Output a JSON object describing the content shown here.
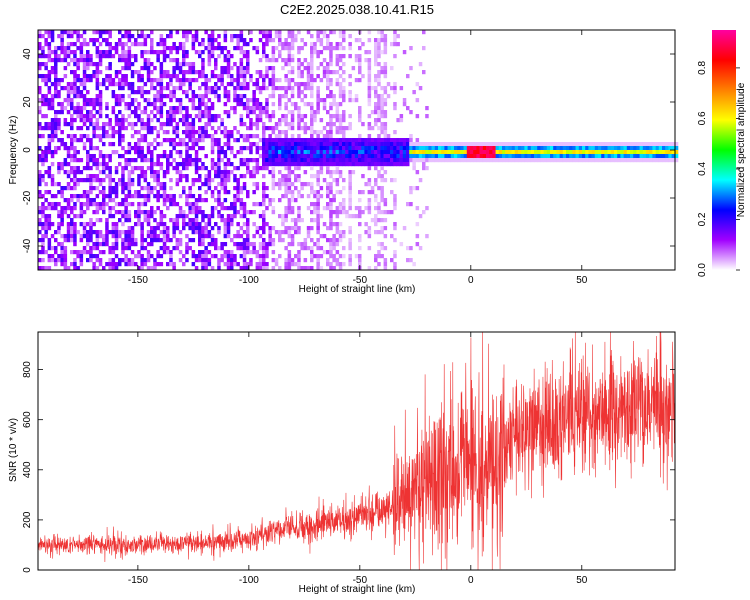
{
  "title": "C2E2.2025.038.10.41.R15",
  "chart_data": [
    {
      "type": "heatmap",
      "name": "spectrogram",
      "xlabel": "Height of straight line (km)",
      "ylabel": "Frequency (Hz)",
      "xlim": [
        -195,
        92
      ],
      "ylim": [
        -50,
        50
      ],
      "xticks": [
        -150,
        -100,
        -50,
        0,
        50
      ],
      "yticks": [
        -40,
        -20,
        0,
        20,
        40
      ],
      "colorbar": {
        "label": "Normalized spectral amplitude",
        "range": [
          0,
          0.95
        ],
        "ticks": [
          0.0,
          0.2,
          0.4,
          0.6,
          0.8
        ],
        "colormap": [
          "#ffffff",
          "#a100ff",
          "#0000ff",
          "#00ffff",
          "#00ff00",
          "#ffff00",
          "#ff8000",
          "#ff0000",
          "#ff00a0"
        ]
      },
      "features": [
        {
          "x_range": [
            -195,
            -90
          ],
          "description_level": 0.1
        },
        {
          "x_range": [
            -95,
            -30
          ],
          "center_freq": 0,
          "band_halfwidth_hz": 5,
          "peak_amplitude": 0.3
        },
        {
          "x_range": [
            -30,
            92
          ],
          "center_freq": 0,
          "band_halfwidth_hz": 2,
          "peak_amplitude": 0.55
        },
        {
          "x_range": [
            -5,
            10
          ],
          "center_freq": 0,
          "peak_amplitude": 0.9
        }
      ]
    },
    {
      "type": "line",
      "name": "snr",
      "xlabel": "Height of straight line (km)",
      "ylabel": "SNR (10 * v/v)",
      "xlim": [
        -195,
        92
      ],
      "ylim": [
        0,
        950
      ],
      "xticks": [
        -150,
        -100,
        -50,
        0,
        50
      ],
      "yticks": [
        0,
        200,
        400,
        600,
        800
      ],
      "color": "#ee3333",
      "trend": {
        "x": [
          -195,
          -150,
          -110,
          -90,
          -70,
          -50,
          -30,
          -15,
          0,
          10,
          20,
          50,
          92
        ],
        "y": [
          100,
          100,
          110,
          150,
          180,
          220,
          280,
          380,
          450,
          380,
          560,
          610,
          650
        ]
      }
    }
  ]
}
